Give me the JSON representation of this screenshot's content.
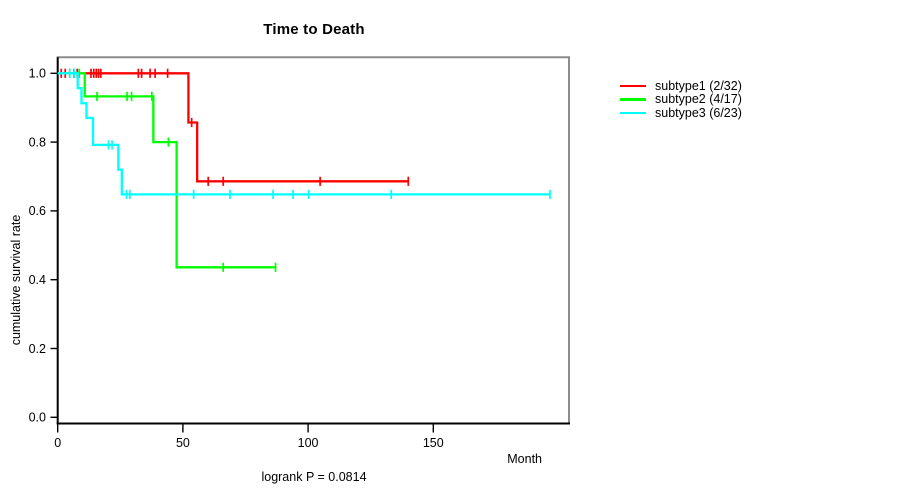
{
  "chart_data": {
    "type": "line",
    "variant": "kaplan-meier-step-curve",
    "title": "Time to Death",
    "xlabel": "Month",
    "ylabel": "cumulative survival rate",
    "annotation": "logrank P = 0.0814",
    "xlim": [
      0,
      204.6
    ],
    "ylim": [
      0.0,
      1.0
    ],
    "x_ticks": [
      0,
      50,
      100,
      150
    ],
    "y_ticks": [
      0.0,
      0.2,
      0.4,
      0.6,
      0.8,
      1.0
    ],
    "grid": false,
    "legend_position": "right-outside",
    "series": [
      {
        "name": "subtype1 (2/32)",
        "color": "#ff0000",
        "steps": [
          [
            0,
            1.0
          ],
          [
            52.2,
            0.857
          ],
          [
            55.7,
            0.686
          ]
        ],
        "end_month": 140.3,
        "censor_marks": [
          [
            1.4,
            1.0
          ],
          [
            3.0,
            1.0
          ],
          [
            4.8,
            1.0
          ],
          [
            6.5,
            1.0
          ],
          [
            7.8,
            1.0
          ],
          [
            13.3,
            1.0
          ],
          [
            14.4,
            1.0
          ],
          [
            15.4,
            1.0
          ],
          [
            16.3,
            1.0
          ],
          [
            17.2,
            1.0
          ],
          [
            32.2,
            1.0
          ],
          [
            33.5,
            1.0
          ],
          [
            36.9,
            1.0
          ],
          [
            38.9,
            1.0
          ],
          [
            43.9,
            1.0
          ],
          [
            53.5,
            0.857
          ],
          [
            60.1,
            0.686
          ],
          [
            66.1,
            0.686
          ],
          [
            104.8,
            0.686
          ],
          [
            140.0,
            0.686
          ]
        ]
      },
      {
        "name": "subtype2 (4/17)",
        "color": "#00ff00",
        "steps": [
          [
            0,
            1.0
          ],
          [
            10.8,
            0.933
          ],
          [
            38.2,
            0.8
          ],
          [
            47.5,
            0.436
          ]
        ],
        "end_month": 87.2,
        "censor_marks": [
          [
            8.6,
            1.0
          ],
          [
            15.7,
            0.933
          ],
          [
            27.7,
            0.933
          ],
          [
            29.5,
            0.933
          ],
          [
            37.6,
            0.933
          ],
          [
            44.2,
            0.8
          ],
          [
            66.1,
            0.436
          ],
          [
            87.0,
            0.436
          ]
        ]
      },
      {
        "name": "subtype3 (6/23)",
        "color": "#00ffff",
        "steps": [
          [
            0,
            1.0
          ],
          [
            8.0,
            0.957
          ],
          [
            9.5,
            0.913
          ],
          [
            11.5,
            0.87
          ],
          [
            14.1,
            0.792
          ],
          [
            24.2,
            0.72
          ],
          [
            25.6,
            0.648
          ]
        ],
        "end_month": 196.8,
        "censor_marks": [
          [
            4.8,
            1.0
          ],
          [
            6.6,
            1.0
          ],
          [
            20.3,
            0.792
          ],
          [
            21.7,
            0.792
          ],
          [
            27.5,
            0.648
          ],
          [
            28.8,
            0.648
          ],
          [
            54.3,
            0.648
          ],
          [
            68.8,
            0.648
          ],
          [
            86.0,
            0.648
          ],
          [
            94.0,
            0.648
          ],
          [
            100.2,
            0.648
          ],
          [
            133.2,
            0.648
          ],
          [
            196.6,
            0.648
          ]
        ]
      }
    ]
  },
  "frame": {
    "top_right_color": "#8c8c8c",
    "bottom_left_color": "#000000"
  }
}
